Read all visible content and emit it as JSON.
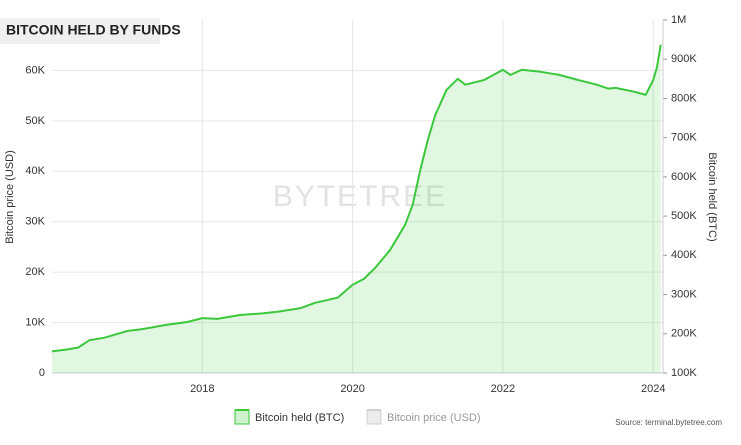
{
  "chart_data": {
    "type": "line",
    "title": "BITCOIN HELD BY FUNDS",
    "watermark": "BYTETREE",
    "source": "Source: terminal.bytetree.com",
    "y_label": "Bitcoin price (USD)",
    "y2_label": "Bitcoin held (BTC)",
    "x": [
      2016.0,
      2016.2,
      2016.35,
      2016.5,
      2016.7,
      2017.0,
      2017.2,
      2017.5,
      2017.8,
      2018.0,
      2018.2,
      2018.5,
      2018.8,
      2019.0,
      2019.3,
      2019.5,
      2019.8,
      2020.0,
      2020.15,
      2020.3,
      2020.5,
      2020.7,
      2020.8,
      2020.9,
      2021.0,
      2021.1,
      2021.25,
      2021.4,
      2021.5,
      2021.75,
      2022.0,
      2022.1,
      2022.25,
      2022.5,
      2022.75,
      2023.0,
      2023.25,
      2023.4,
      2023.5,
      2023.75,
      2023.9,
      2024.0,
      2024.05,
      2024.1
    ],
    "series": [
      {
        "name": "Bitcoin held (BTC)",
        "color": "#3cc83c",
        "axis": "y2",
        "values": [
          155000,
          160000,
          165000,
          184000,
          190000,
          207000,
          212000,
          222000,
          230000,
          240000,
          238000,
          248000,
          252000,
          256000,
          265000,
          279000,
          292000,
          325000,
          340000,
          368000,
          414000,
          478000,
          529000,
          618000,
          694000,
          758000,
          822000,
          850000,
          835000,
          847000,
          873000,
          860000,
          873000,
          868000,
          860000,
          847000,
          835000,
          825000,
          827000,
          817000,
          809000,
          847000,
          880000,
          937000
        ]
      },
      {
        "name": "Bitcoin price (USD)",
        "color": "#d0d0d0",
        "visible": false,
        "values": [
          null,
          null,
          null,
          null,
          null,
          null,
          null,
          null,
          null,
          null,
          null,
          null,
          null,
          null,
          null,
          null,
          null,
          null,
          null,
          null,
          null,
          null,
          null,
          null,
          null,
          null,
          null,
          null,
          null,
          null,
          null,
          null,
          null,
          null,
          null,
          null,
          null,
          null,
          null,
          null,
          null,
          null,
          null,
          null
        ]
      }
    ],
    "xlim": [
      2016.0,
      2024.13
    ],
    "xticks": [
      2018,
      2020,
      2022,
      2024
    ],
    "ylim": [
      0,
      70000
    ],
    "yticks": [
      0,
      {
        "value": 10000,
        "label": "10K"
      },
      {
        "value": 20000,
        "label": "20K"
      },
      {
        "value": 30000,
        "label": "30K"
      },
      {
        "value": 40000,
        "label": "40K"
      },
      {
        "value": 50000,
        "label": "50K"
      },
      {
        "value": 60000,
        "label": "60K"
      }
    ],
    "y2lim": [
      100000,
      1000000
    ],
    "y2ticks": [
      {
        "value": 100000,
        "label": "100K"
      },
      {
        "value": 200000,
        "label": "200K"
      },
      {
        "value": 300000,
        "label": "300K"
      },
      {
        "value": 400000,
        "label": "400K"
      },
      {
        "value": 500000,
        "label": "500K"
      },
      {
        "value": 600000,
        "label": "600K"
      },
      {
        "value": 700000,
        "label": "700K"
      },
      {
        "value": 800000,
        "label": "800K"
      },
      {
        "value": 900000,
        "label": "900K"
      },
      {
        "value": 1000000,
        "label": "1M"
      }
    ],
    "grid": true
  }
}
